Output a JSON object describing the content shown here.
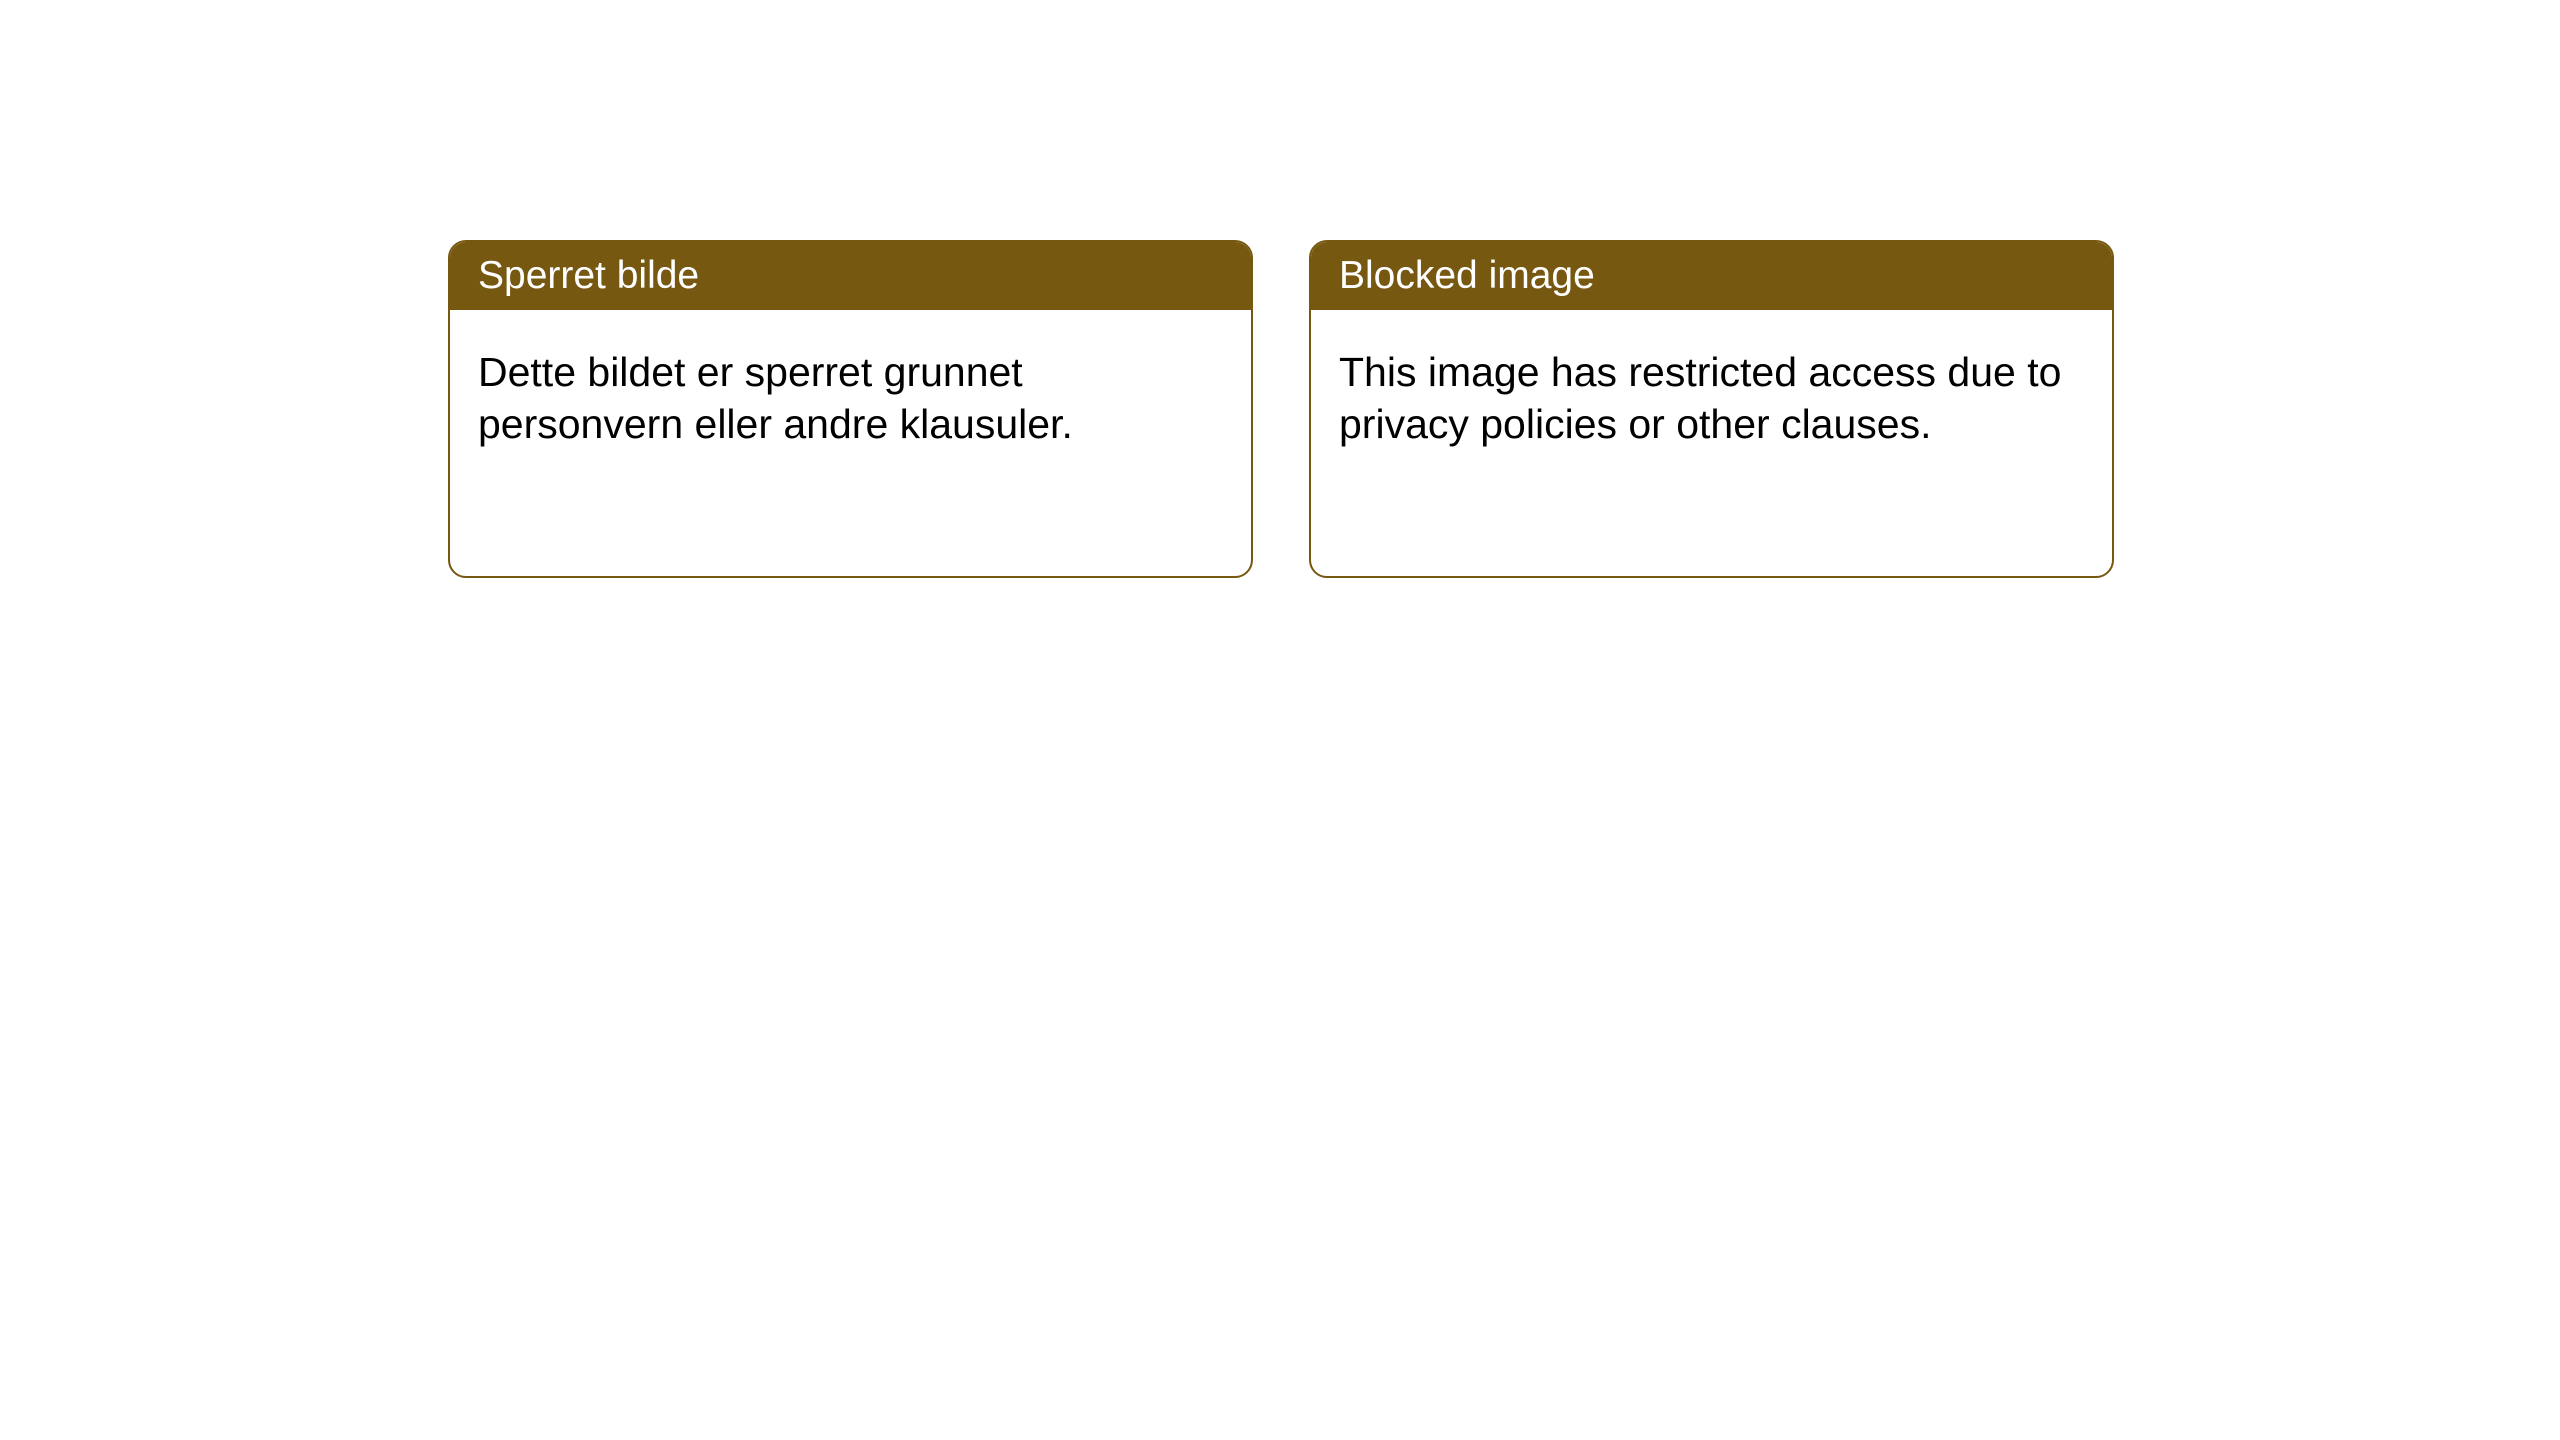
{
  "cards": [
    {
      "title": "Sperret bilde",
      "body": "Dette bildet er sperret grunnet personvern eller andre klausuler."
    },
    {
      "title": "Blocked image",
      "body": "This image has restricted access due to privacy policies or other clauses."
    }
  ],
  "style": {
    "header_bg": "#775810",
    "header_text_color": "#ffffff",
    "border_color": "#775810",
    "body_bg": "#ffffff",
    "body_text_color": "#000000",
    "border_radius": 18,
    "header_fontsize": 39,
    "body_fontsize": 41
  }
}
